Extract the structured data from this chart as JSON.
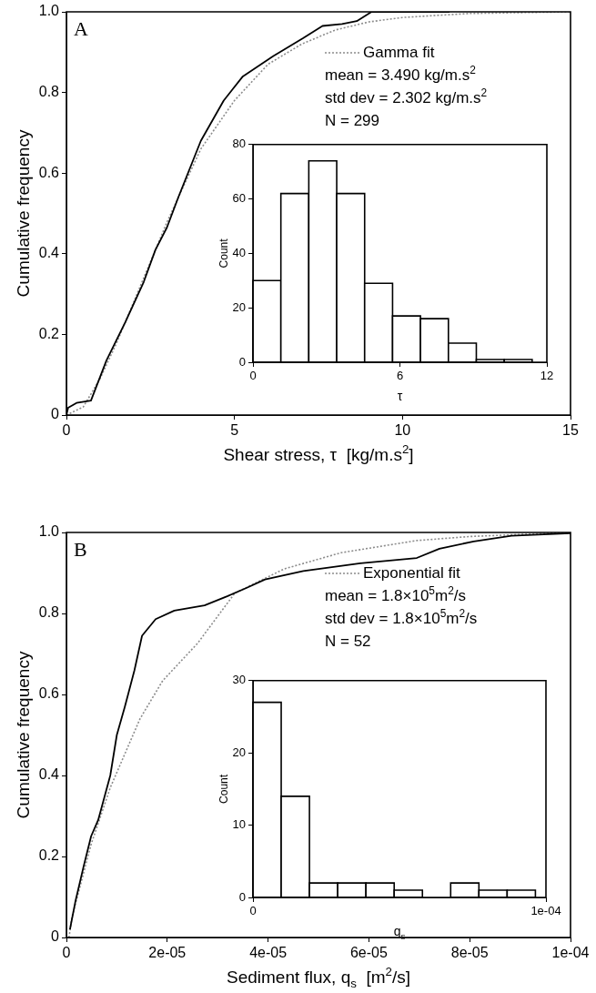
{
  "chart_data": [
    {
      "type": "line",
      "xlabel": "Shear stress, τ  [kg/m.s$^{2}$]",
      "ylabel": "Cumulative frequency",
      "xlim": [
        0,
        15
      ],
      "xticks": [
        0,
        5,
        10,
        15
      ],
      "ylim": [
        0,
        1
      ],
      "yticks": [
        0,
        0.2,
        0.4,
        0.6,
        0.8,
        {
          "value": 1,
          "label": "1.0"
        }
      ],
      "legend": "top right",
      "marker": "none",
      "annotations": [
        "A",
        "mean = 3.490 kg/m.s$^{2}$",
        "std dev = 2.302 kg/m.s$^{2}$",
        "N = 299"
      ],
      "series": [
        {
          "color": "#000000",
          "line_style": "solid",
          "x": [
            0,
            0.05,
            0.3,
            0.73,
            1.19,
            1.75,
            2.3,
            2.65,
            2.99,
            3.33,
            4.0,
            4.68,
            5.25,
            6.15,
            7.05,
            7.62,
            8.2,
            8.64,
            9.08,
            11.4
          ],
          "values": [
            0,
            0.018,
            0.03,
            0.036,
            0.135,
            0.23,
            0.33,
            0.41,
            0.465,
            0.54,
            0.68,
            0.78,
            0.84,
            0.89,
            0.935,
            0.965,
            0.97,
            0.977,
            1.0,
            1.0
          ]
        },
        {
          "name": "Gamma fit",
          "color": "#8c8c8c",
          "line_style": "dotted",
          "x": [
            0,
            0.5,
            1,
            1.5,
            2,
            2.5,
            3,
            3.5,
            4,
            5,
            6,
            7,
            8,
            9,
            10,
            12,
            15
          ],
          "values": [
            0,
            0.02,
            0.09,
            0.18,
            0.28,
            0.38,
            0.48,
            0.57,
            0.66,
            0.78,
            0.87,
            0.92,
            0.955,
            0.975,
            0.986,
            0.996,
            1.0
          ]
        }
      ]
    },
    {
      "type": "histogram",
      "xlabel": "τ",
      "ylabel": "Count",
      "xlim": [
        0,
        12
      ],
      "xticks": [
        0,
        6,
        12
      ],
      "ylim": [
        0,
        80
      ],
      "yticks": [
        0,
        20,
        40,
        60,
        80
      ],
      "color": "#ffffff",
      "bins": [
        0,
        1.14,
        2.28,
        3.42,
        4.56,
        5.7,
        6.84,
        7.98,
        9.12,
        10.26,
        11.4
      ],
      "values": [
        30,
        62,
        74,
        62,
        29,
        17,
        16,
        7,
        1,
        1
      ]
    },
    {
      "type": "line",
      "xlabel": "Sediment flux, q$_{s}$  [m$^{2}$/s]",
      "ylabel": "Cumulative frequency",
      "xlim": [
        0,
        0.0001
      ],
      "xticks": [
        0,
        {
          "value": 2e-05,
          "label": "2e-05"
        },
        {
          "value": 4e-05,
          "label": "4e-05"
        },
        {
          "value": 6e-05,
          "label": "6e-05"
        },
        {
          "value": 8e-05,
          "label": "8e-05"
        },
        {
          "value": 0.0001,
          "label": "1e-04"
        }
      ],
      "ylim": [
        0,
        1
      ],
      "yticks": [
        0,
        0.2,
        0.4,
        0.6,
        0.8,
        {
          "value": 1,
          "label": "1.0"
        }
      ],
      "legend": "top right",
      "marker": "none",
      "annotations": [
        "B",
        "mean = 1.8×10$^{5}$m$^{2}$/s",
        "std dev = 1.8×10$^{5}$m$^{2}$/s",
        "N = 52"
      ],
      "series": [
        {
          "color": "#000000",
          "line_style": "solid",
          "x": [
            7e-07,
            1.8e-06,
            3.4e-06,
            4.9e-06,
            6.3e-06,
            8.7e-06,
            1e-05,
            1.16e-05,
            1.35e-05,
            1.5e-05,
            1.77e-05,
            2.14e-05,
            2.74e-05,
            3.2e-05,
            3.57e-05,
            3.94e-05,
            4.7e-05,
            5.83e-05,
            6.95e-05,
            7.4e-05,
            8.08e-05,
            8.83e-05,
            0.0001
          ],
          "values": [
            0.02,
            0.09,
            0.175,
            0.25,
            0.29,
            0.4,
            0.5,
            0.57,
            0.66,
            0.745,
            0.786,
            0.807,
            0.82,
            0.843,
            0.863,
            0.884,
            0.905,
            0.924,
            0.937,
            0.96,
            0.978,
            0.992,
            0.998
          ]
        },
        {
          "name": "Exponential fit",
          "color": "#8c8c8c",
          "line_style": "dotted",
          "x": [
            5e-07,
            1.1e-06,
            4.9e-06,
            8.7e-06,
            1.46e-05,
            1.91e-05,
            2.6e-05,
            3.34e-05,
            4.32e-05,
            5.45e-05,
            6.95e-05,
            8e-05,
            0.0001
          ],
          "values": [
            0,
            0.05,
            0.23,
            0.37,
            0.54,
            0.634,
            0.726,
            0.85,
            0.91,
            0.95,
            0.98,
            0.99,
            1.0
          ]
        }
      ]
    },
    {
      "type": "histogram",
      "xlabel": "q$_{s}$",
      "ylabel": "Count",
      "xlim": [
        0,
        0.0001
      ],
      "xticks": [
        0,
        {
          "value": 0.0001,
          "label": "1e-04"
        }
      ],
      "ylim": [
        0,
        30
      ],
      "yticks": [
        0,
        10,
        20,
        30
      ],
      "color": "#ffffff",
      "bins": [
        0,
        9.64e-06,
        1.928e-05,
        2.892e-05,
        3.856e-05,
        4.82e-05,
        5.784e-05,
        6.748e-05,
        7.712e-05,
        8.676e-05,
        9.64e-05
      ],
      "values": [
        27,
        14,
        2,
        2,
        2,
        1,
        0,
        2,
        1,
        1
      ]
    }
  ]
}
